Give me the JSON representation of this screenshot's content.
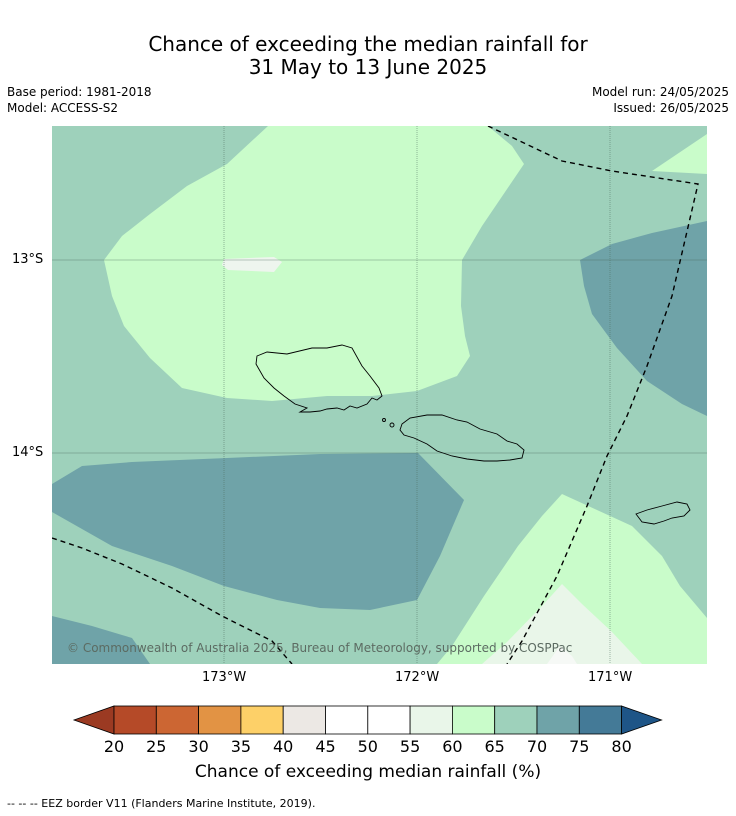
{
  "title_line1": "Chance of exceeding the median rainfall for",
  "title_line2": "31 May to 13 June 2025",
  "base_period": "Base period: 1981-2018",
  "model": "Model: ACCESS-S2",
  "model_run": "Model run: 24/05/2025",
  "issued": "Issued: 26/05/2025",
  "copyright": "© Commonwealth of Australia 2025, Bureau of Meteorology, supported by COSPPac",
  "lat_labels": [
    "13°S",
    "14°S"
  ],
  "lon_labels": [
    "173°W",
    "172°W",
    "171°W"
  ],
  "colorbar": {
    "ticks": [
      "20",
      "25",
      "30",
      "35",
      "40",
      "45",
      "50",
      "55",
      "60",
      "65",
      "70",
      "75",
      "80"
    ],
    "colors": [
      "#9b3a22",
      "#b54a28",
      "#cc6633",
      "#e29344",
      "#fdd068",
      "#ece8e4",
      "#ffffff",
      "#ffffff",
      "#e9f6e9",
      "#c9fcca",
      "#9ed1bb",
      "#6fa3a8",
      "#447a97",
      "#1e5587"
    ],
    "title": "Chance of exceeding median rainfall (%)"
  },
  "footnote": "--  --  -- EEZ border V11 (Flanders Marine Institute, 2019)."
}
